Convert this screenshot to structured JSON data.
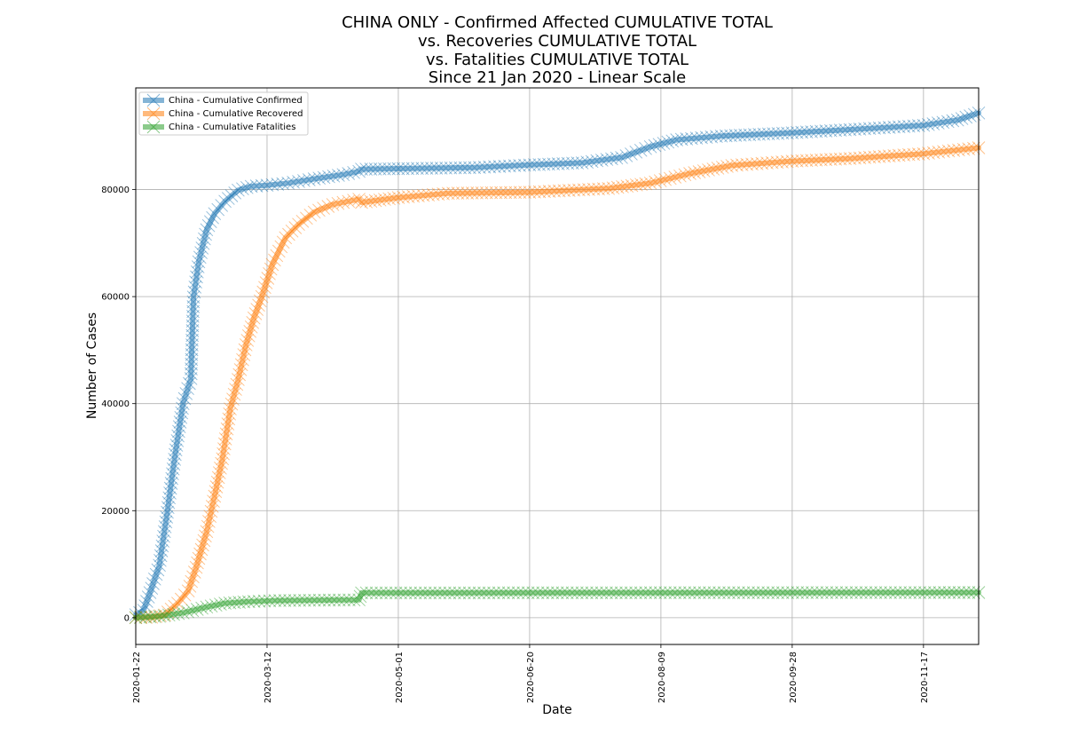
{
  "chart_data": {
    "type": "line",
    "title_lines": [
      "CHINA ONLY - Confirmed Affected CUMULATIVE TOTAL",
      "vs. Recoveries CUMULATIVE TOTAL",
      "vs. Fatalities CUMULATIVE TOTAL",
      "Since 21 Jan 2020 - Linear Scale"
    ],
    "xlabel": "Date",
    "ylabel": "Number of Cases",
    "x_range": [
      "2020-01-22",
      "2020-12-08"
    ],
    "ylim": [
      -5000,
      99000
    ],
    "x_ticks": [
      "2020-01-22",
      "2020-03-12",
      "2020-05-01",
      "2020-06-20",
      "2020-08-09",
      "2020-09-28",
      "2020-11-17"
    ],
    "y_ticks": [
      0,
      20000,
      40000,
      60000,
      80000
    ],
    "grid": true,
    "legend_position": "top-left",
    "marker": "x",
    "series": [
      {
        "name": "China - Cumulative Confirmed",
        "color": "#1f77b4",
        "points": [
          [
            "2020-01-22",
            548
          ],
          [
            "2020-01-25",
            1400
          ],
          [
            "2020-01-28",
            5500
          ],
          [
            "2020-01-31",
            9800
          ],
          [
            "2020-02-03",
            19700
          ],
          [
            "2020-02-06",
            30500
          ],
          [
            "2020-02-09",
            40000
          ],
          [
            "2020-02-12",
            44700
          ],
          [
            "2020-02-13",
            59900
          ],
          [
            "2020-02-15",
            66500
          ],
          [
            "2020-02-18",
            72500
          ],
          [
            "2020-02-21",
            75500
          ],
          [
            "2020-02-25",
            77800
          ],
          [
            "2020-03-01",
            79900
          ],
          [
            "2020-03-06",
            80600
          ],
          [
            "2020-03-12",
            80800
          ],
          [
            "2020-03-20",
            81200
          ],
          [
            "2020-03-30",
            82000
          ],
          [
            "2020-04-10",
            82800
          ],
          [
            "2020-04-16",
            83400
          ],
          [
            "2020-04-17",
            83800
          ],
          [
            "2020-05-01",
            83900
          ],
          [
            "2020-05-30",
            84100
          ],
          [
            "2020-06-20",
            84600
          ],
          [
            "2020-07-10",
            85000
          ],
          [
            "2020-07-25",
            86000
          ],
          [
            "2020-08-05",
            88000
          ],
          [
            "2020-08-15",
            89300
          ],
          [
            "2020-09-01",
            90000
          ],
          [
            "2020-09-28",
            90600
          ],
          [
            "2020-10-20",
            91200
          ],
          [
            "2020-11-17",
            92000
          ],
          [
            "2020-11-30",
            93000
          ],
          [
            "2020-12-08",
            94300
          ]
        ]
      },
      {
        "name": "China - Cumulative Recovered",
        "color": "#ff7f0e",
        "points": [
          [
            "2020-01-22",
            28
          ],
          [
            "2020-01-28",
            100
          ],
          [
            "2020-02-02",
            500
          ],
          [
            "2020-02-07",
            2700
          ],
          [
            "2020-02-11",
            5000
          ],
          [
            "2020-02-14",
            9400
          ],
          [
            "2020-02-18",
            16100
          ],
          [
            "2020-02-21",
            22700
          ],
          [
            "2020-02-24",
            29700
          ],
          [
            "2020-02-27",
            39000
          ],
          [
            "2020-03-01",
            44500
          ],
          [
            "2020-03-04",
            51000
          ],
          [
            "2020-03-07",
            56000
          ],
          [
            "2020-03-10",
            60000
          ],
          [
            "2020-03-14",
            66000
          ],
          [
            "2020-03-19",
            71000
          ],
          [
            "2020-03-24",
            73500
          ],
          [
            "2020-03-30",
            75800
          ],
          [
            "2020-04-06",
            77200
          ],
          [
            "2020-04-16",
            78200
          ],
          [
            "2020-04-17",
            77600
          ],
          [
            "2020-05-01",
            78500
          ],
          [
            "2020-05-20",
            79300
          ],
          [
            "2020-06-20",
            79500
          ],
          [
            "2020-07-20",
            80200
          ],
          [
            "2020-08-05",
            81200
          ],
          [
            "2020-08-20",
            83000
          ],
          [
            "2020-09-05",
            84500
          ],
          [
            "2020-09-28",
            85300
          ],
          [
            "2020-10-20",
            85800
          ],
          [
            "2020-11-17",
            86700
          ],
          [
            "2020-12-08",
            87800
          ]
        ]
      },
      {
        "name": "China - Cumulative Fatalities",
        "color": "#2ca02c",
        "points": [
          [
            "2020-01-22",
            17
          ],
          [
            "2020-01-31",
            250
          ],
          [
            "2020-02-09",
            900
          ],
          [
            "2020-02-18",
            2000
          ],
          [
            "2020-02-25",
            2700
          ],
          [
            "2020-03-05",
            3000
          ],
          [
            "2020-03-15",
            3200
          ],
          [
            "2020-04-16",
            3340
          ],
          [
            "2020-04-17",
            4630
          ],
          [
            "2020-12-08",
            4700
          ]
        ]
      }
    ]
  }
}
